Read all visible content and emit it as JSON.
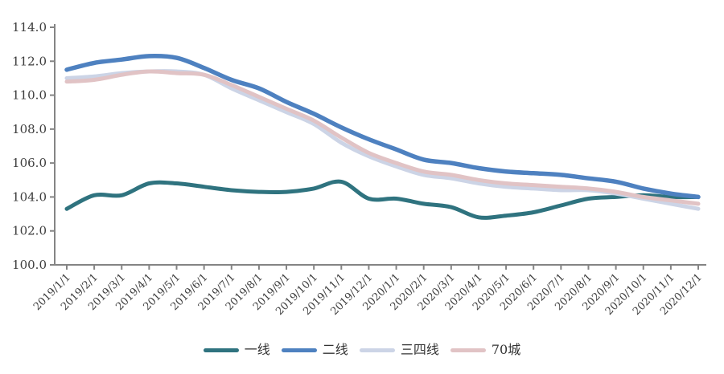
{
  "chart_data": {
    "type": "line",
    "title": "",
    "xlabel": "",
    "ylabel": "",
    "x": [
      "2019/1/1",
      "2019/2/1",
      "2019/3/1",
      "2019/4/1",
      "2019/5/1",
      "2019/6/1",
      "2019/7/1",
      "2019/8/1",
      "2019/9/1",
      "2019/10/1",
      "2019/11/1",
      "2019/12/1",
      "2020/1/1",
      "2020/2/1",
      "2020/3/1",
      "2020/4/1",
      "2020/5/1",
      "2020/6/1",
      "2020/7/1",
      "2020/8/1",
      "2020/9/1",
      "2020/10/1",
      "2020/11/1",
      "2020/12/1"
    ],
    "series": [
      {
        "name": "一线",
        "color": "#2f737f",
        "values": [
          103.3,
          104.1,
          104.1,
          104.8,
          104.8,
          104.6,
          104.4,
          104.3,
          104.3,
          104.5,
          104.9,
          103.9,
          103.9,
          103.6,
          103.4,
          102.8,
          102.9,
          103.1,
          103.5,
          103.9,
          104.0,
          104.1,
          104.0,
          104.0
        ]
      },
      {
        "name": "二线",
        "color": "#4e81c0",
        "values": [
          111.5,
          111.9,
          112.1,
          112.3,
          112.2,
          111.6,
          110.9,
          110.4,
          109.6,
          108.9,
          108.1,
          107.4,
          106.8,
          106.2,
          106.0,
          105.7,
          105.5,
          105.4,
          105.3,
          105.1,
          104.9,
          104.5,
          104.2,
          104.0
        ]
      },
      {
        "name": "三四线",
        "color": "#ccd4e6",
        "values": [
          111.0,
          111.1,
          111.3,
          111.4,
          111.4,
          111.2,
          110.4,
          109.7,
          109.0,
          108.3,
          107.2,
          106.4,
          105.8,
          105.3,
          105.1,
          104.8,
          104.6,
          104.5,
          104.4,
          104.4,
          104.2,
          103.9,
          103.6,
          103.3
        ]
      },
      {
        "name": "70城",
        "color": "#e1c3c5",
        "values": [
          110.8,
          110.9,
          111.2,
          111.4,
          111.3,
          111.2,
          110.6,
          109.9,
          109.2,
          108.5,
          107.5,
          106.6,
          106.0,
          105.5,
          105.3,
          105.0,
          104.8,
          104.7,
          104.6,
          104.5,
          104.3,
          104.0,
          103.8,
          103.6
        ]
      }
    ],
    "ylim": [
      100,
      114
    ],
    "ytick_step": 2,
    "ytick_labels": [
      "100.0",
      "102.0",
      "104.0",
      "106.0",
      "108.0",
      "110.0",
      "112.0",
      "114.0"
    ],
    "grid": false,
    "legend_position": "bottom"
  },
  "style": {
    "axis_color": "#848484",
    "tick_label_color": "#3d3d3d",
    "legend_label_color": "#333333",
    "background": "#ffffff"
  }
}
